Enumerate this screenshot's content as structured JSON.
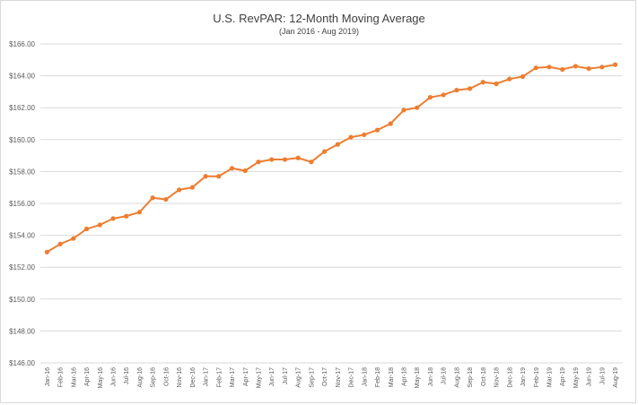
{
  "chart_data": {
    "type": "line",
    "title": "U.S. RevPAR: 12-Month Moving Average",
    "subtitle": "(Jan 2016 - Aug 2019)",
    "xlabel": "",
    "ylabel": "",
    "ylim": [
      146,
      166
    ],
    "y_ticks": [
      "$146.00",
      "$148.00",
      "$150.00",
      "$152.00",
      "$154.00",
      "$156.00",
      "$158.00",
      "$160.00",
      "$162.00",
      "$164.00",
      "$166.00"
    ],
    "grid": true,
    "legend": "none",
    "line_color": "#ed7d31",
    "grid_color": "#d9d9d9",
    "categories": [
      "Jan-16",
      "Feb-16",
      "Mar-16",
      "Apr-16",
      "May-16",
      "Jun-16",
      "Jul-16",
      "Aug-16",
      "Sep-16",
      "Oct-16",
      "Nov-16",
      "Dec-16",
      "Jan-17",
      "Feb-17",
      "Mar-17",
      "Apr-17",
      "May-17",
      "Jun-17",
      "Jul-17",
      "Aug-17",
      "Sep-17",
      "Oct-17",
      "Nov-17",
      "Dec-17",
      "Jan-18",
      "Feb-18",
      "Mar-18",
      "Apr-18",
      "May-18",
      "Jun-18",
      "Jul-18",
      "Aug-18",
      "Sep-18",
      "Oct-18",
      "Nov-18",
      "Dec-18",
      "Jan-19",
      "Feb-19",
      "Mar-19",
      "Apr-19",
      "May-19",
      "Jun-19",
      "Jul-19",
      "Aug-19"
    ],
    "series": [
      {
        "values": [
          152.95,
          153.45,
          153.8,
          154.4,
          154.65,
          155.05,
          155.2,
          155.45,
          156.35,
          156.25,
          156.85,
          157.0,
          157.7,
          157.7,
          158.2,
          158.05,
          158.6,
          158.75,
          158.75,
          158.85,
          158.6,
          159.25,
          159.7,
          160.15,
          160.3,
          160.6,
          161.0,
          161.85,
          162.0,
          162.65,
          162.8,
          163.1,
          163.2,
          163.6,
          163.5,
          163.8,
          163.95,
          164.5,
          164.55,
          164.4,
          164.6,
          164.45,
          164.55,
          164.7
        ]
      }
    ]
  }
}
